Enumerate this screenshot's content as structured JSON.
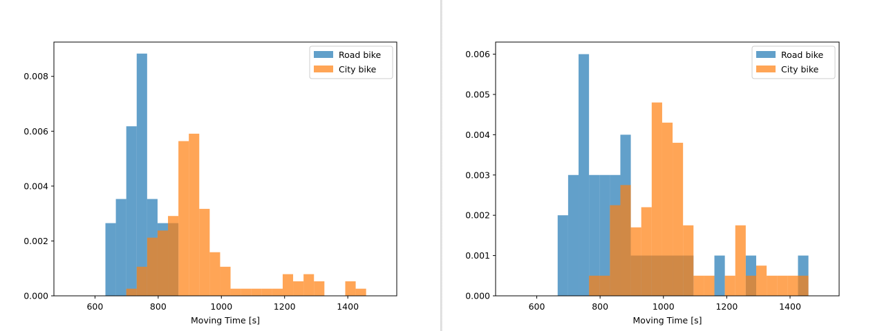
{
  "chart_data": [
    {
      "type": "histogram",
      "xlabel": "Moving Time [s]",
      "ylabel": "",
      "xlim": [
        470,
        1555
      ],
      "ylim": [
        0,
        0.00925
      ],
      "xticks": [
        600,
        800,
        1000,
        1200,
        1400
      ],
      "xtick_labels": [
        "600",
        "800",
        "1000",
        "1200",
        "1400"
      ],
      "yticks": [
        0,
        0.002,
        0.004,
        0.006,
        0.008
      ],
      "ytick_labels": [
        "0.000",
        "0.002",
        "0.004",
        "0.006",
        "0.008"
      ],
      "legend": "top-right",
      "grid": false,
      "series": [
        {
          "name": "Road bike",
          "color": "#1f77b4",
          "opacity": 0.7,
          "bin_edges": [
            633,
            666,
            699,
            732,
            765,
            798,
            831,
            864
          ],
          "values": [
            0.00265,
            0.00353,
            0.00618,
            0.00883,
            0.00353,
            0.00265,
            0.00265
          ]
        },
        {
          "name": "City bike",
          "color": "#ff7f0e",
          "opacity": 0.7,
          "bin_edges": [
            699,
            732,
            765,
            798,
            831,
            864,
            897,
            930,
            963,
            996,
            1029,
            1062,
            1095,
            1128,
            1161,
            1194,
            1227,
            1260,
            1293,
            1326,
            1359,
            1392,
            1425,
            1458
          ],
          "values": [
            0.00026,
            0.00106,
            0.00212,
            0.00238,
            0.00291,
            0.00564,
            0.00591,
            0.00317,
            0.00159,
            0.00106,
            0.00026,
            0.00026,
            0.00026,
            0.00026,
            0.00026,
            0.00079,
            0.00053,
            0.00079,
            0.00053,
            0,
            0,
            0.00053,
            0.00026
          ]
        }
      ]
    },
    {
      "type": "histogram",
      "xlabel": "Moving Time [s]",
      "ylabel": "",
      "xlim": [
        470,
        1555
      ],
      "ylim": [
        0,
        0.0063
      ],
      "xticks": [
        600,
        800,
        1000,
        1200,
        1400
      ],
      "xtick_labels": [
        "600",
        "800",
        "1000",
        "1200",
        "1400"
      ],
      "yticks": [
        0,
        0.001,
        0.002,
        0.003,
        0.004,
        0.005,
        0.006
      ],
      "ytick_labels": [
        "0.000",
        "0.001",
        "0.002",
        "0.003",
        "0.004",
        "0.005",
        "0.006"
      ],
      "legend": "top-right",
      "grid": false,
      "series": [
        {
          "name": "Road bike",
          "color": "#1f77b4",
          "opacity": 0.7,
          "bin_edges": [
            666,
            699,
            732,
            765,
            798,
            831,
            864,
            897,
            930,
            963,
            996,
            1029,
            1062,
            1095,
            1128,
            1161,
            1194,
            1227,
            1260,
            1293,
            1326,
            1359,
            1392,
            1425,
            1458
          ],
          "values": [
            0.002,
            0.003,
            0.006,
            0.003,
            0.003,
            0.003,
            0.004,
            0.001,
            0.001,
            0.001,
            0.001,
            0.001,
            0.001,
            0,
            0,
            0.001,
            0,
            0,
            0.001,
            0,
            0,
            0,
            0,
            0.001
          ]
        },
        {
          "name": "City bike",
          "color": "#ff7f0e",
          "opacity": 0.7,
          "bin_edges": [
            765,
            798,
            831,
            864,
            897,
            930,
            963,
            996,
            1029,
            1062,
            1095,
            1128,
            1161,
            1194,
            1227,
            1260,
            1293,
            1326,
            1359,
            1392,
            1425,
            1458
          ],
          "values": [
            0.0005,
            0.0005,
            0.00225,
            0.00275,
            0.0017,
            0.0022,
            0.0048,
            0.0043,
            0.0038,
            0.00175,
            0.0005,
            0.0005,
            0,
            0.0005,
            0.00175,
            0.0005,
            0.00075,
            0.0005,
            0.0005,
            0.0005,
            0.0005
          ]
        }
      ]
    }
  ]
}
